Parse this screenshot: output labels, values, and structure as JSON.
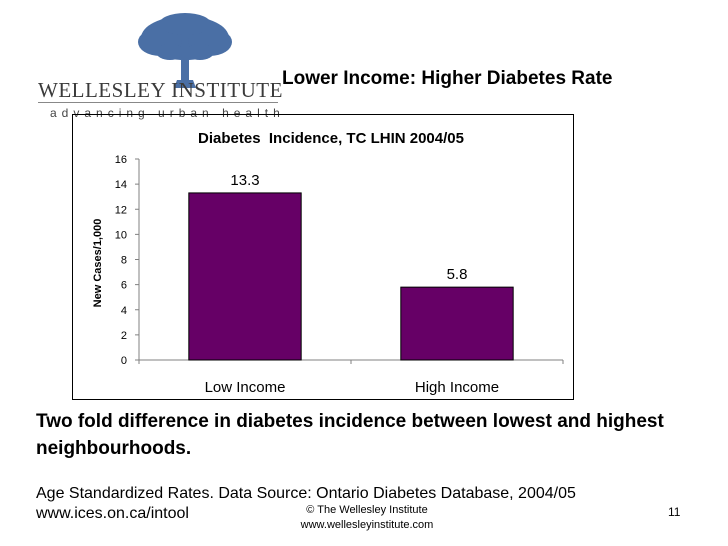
{
  "logo": {
    "name": "WELLESLEY INSTITUTE",
    "tagline": "advancing urban health"
  },
  "slide": {
    "title": "Lower Income: Higher Diabetes Rate",
    "statement": "Two fold difference in diabetes incidence between lowest and highest neighbourhoods.",
    "source_line1": "Age Standardized Rates. Data Source: Ontario Diabetes Database, 2004/05",
    "source_line2": "www.ices.on.ca/intool",
    "footer_line1": "© The Wellesley Institute",
    "footer_line2": "www.wellesleyinstitute.com",
    "page_number": "11"
  },
  "colors": {
    "bar": "#660066",
    "tree": "#4a6fa5"
  },
  "chart_data": {
    "type": "bar",
    "title": "Diabetes  Incidence, TC LHIN 2004/05",
    "xlabel": "",
    "ylabel": "New Cases/1,000",
    "categories": [
      "Low Income",
      "High Income"
    ],
    "values": [
      13.3,
      5.8
    ],
    "data_labels": [
      "13.3",
      "5.8"
    ],
    "ylim": [
      0,
      16
    ],
    "yticks": [
      "0",
      "2",
      "4",
      "6",
      "8",
      "10",
      "12",
      "14",
      "16"
    ],
    "grid": false,
    "legend": "none"
  }
}
